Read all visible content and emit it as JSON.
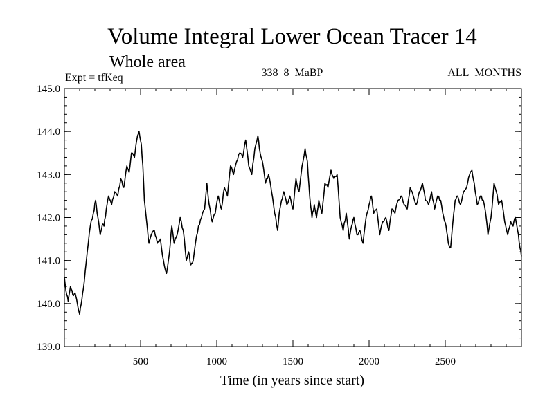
{
  "chart_data": {
    "type": "line",
    "title": "Volume Integral Lower Ocean Tracer 14",
    "subtitle": "Whole area",
    "annotations": {
      "left": "Expt = tfKeq",
      "center": "338_8_MaBP",
      "right": "ALL_MONTHS"
    },
    "xlabel": "Time (in years since start)",
    "ylabel": "",
    "xlim": [
      0,
      3000
    ],
    "ylim": [
      139.0,
      145.0
    ],
    "x_ticks": [
      500,
      1000,
      1500,
      2000,
      2500
    ],
    "x_tick_labels": [
      "500",
      "1000",
      "1500",
      "2000",
      "2500"
    ],
    "y_ticks": [
      139,
      140,
      141,
      142,
      143,
      144,
      145
    ],
    "y_tick_labels": [
      "139.0",
      "140.0",
      "141.0",
      "142.0",
      "143.0",
      "144.0",
      "145.0"
    ],
    "grid": false,
    "series": [
      {
        "color": "#000000",
        "x": [
          0,
          10,
          25,
          40,
          55,
          70,
          85,
          100,
          115,
          130,
          150,
          170,
          190,
          205,
          220,
          235,
          250,
          260,
          275,
          290,
          310,
          330,
          350,
          370,
          390,
          410,
          425,
          440,
          460,
          475,
          490,
          505,
          515,
          525,
          540,
          555,
          570,
          590,
          610,
          630,
          650,
          670,
          690,
          705,
          720,
          740,
          760,
          780,
          800,
          815,
          830,
          845,
          860,
          880,
          900,
          920,
          935,
          950,
          970,
          990,
          1010,
          1030,
          1050,
          1070,
          1090,
          1110,
          1130,
          1150,
          1170,
          1190,
          1210,
          1230,
          1250,
          1270,
          1285,
          1300,
          1320,
          1340,
          1360,
          1380,
          1400,
          1410,
          1425,
          1440,
          1460,
          1480,
          1500,
          1520,
          1540,
          1560,
          1580,
          1595,
          1610,
          1625,
          1640,
          1655,
          1670,
          1690,
          1710,
          1730,
          1750,
          1770,
          1790,
          1810,
          1830,
          1850,
          1870,
          1885,
          1900,
          1920,
          1940,
          1960,
          1980,
          2000,
          2015,
          2030,
          2050,
          2070,
          2090,
          2110,
          2130,
          2150,
          2170,
          2190,
          2210,
          2230,
          2250,
          2270,
          2290,
          2310,
          2330,
          2350,
          2370,
          2390,
          2410,
          2430,
          2450,
          2470,
          2490,
          2505,
          2520,
          2535,
          2550,
          2565,
          2580,
          2600,
          2620,
          2640,
          2660,
          2675,
          2690,
          2710,
          2730,
          2750,
          2765,
          2780,
          2800,
          2820,
          2835,
          2850,
          2870,
          2890,
          2910,
          2930,
          2945,
          2960,
          2975,
          2990,
          3000
        ],
        "values": [
          140.6,
          140.3,
          140.05,
          140.4,
          140.2,
          140.25,
          140.0,
          139.75,
          140.1,
          140.5,
          141.2,
          141.8,
          142.1,
          142.4,
          142.0,
          141.6,
          141.85,
          141.8,
          142.2,
          142.5,
          142.3,
          142.6,
          142.5,
          142.9,
          142.7,
          143.2,
          143.05,
          143.5,
          143.4,
          143.8,
          144.0,
          143.7,
          143.2,
          142.4,
          141.9,
          141.4,
          141.6,
          141.7,
          141.4,
          141.5,
          141.0,
          140.7,
          141.2,
          141.8,
          141.4,
          141.6,
          142.0,
          141.7,
          141.0,
          141.2,
          140.9,
          141.0,
          141.4,
          141.8,
          142.0,
          142.2,
          142.8,
          142.3,
          141.9,
          142.1,
          142.5,
          142.2,
          142.7,
          142.5,
          143.2,
          143.0,
          143.3,
          143.5,
          143.4,
          143.8,
          143.2,
          143.0,
          143.6,
          143.9,
          143.5,
          143.3,
          142.8,
          143.0,
          142.6,
          142.1,
          141.7,
          142.1,
          142.4,
          142.6,
          142.3,
          142.5,
          142.2,
          142.9,
          142.6,
          143.2,
          143.6,
          143.3,
          142.5,
          142.0,
          142.3,
          142.0,
          142.4,
          142.1,
          142.8,
          142.7,
          143.1,
          142.9,
          143.0,
          142.0,
          141.7,
          142.1,
          141.5,
          141.8,
          142.0,
          141.6,
          141.7,
          141.4,
          142.0,
          142.3,
          142.5,
          142.1,
          142.2,
          141.6,
          141.9,
          142.0,
          141.7,
          142.2,
          142.1,
          142.4,
          142.5,
          142.3,
          142.2,
          142.7,
          142.5,
          142.3,
          142.6,
          142.8,
          142.4,
          142.3,
          142.6,
          142.2,
          142.5,
          142.4,
          142.0,
          141.8,
          141.4,
          141.3,
          141.9,
          142.4,
          142.5,
          142.3,
          142.6,
          142.7,
          143.0,
          143.1,
          142.8,
          142.3,
          142.5,
          142.4,
          142.1,
          141.6,
          142.0,
          142.8,
          142.6,
          142.3,
          142.4,
          141.9,
          141.6,
          141.9,
          141.8,
          142.0,
          141.7,
          141.3,
          141.1
        ]
      }
    ]
  }
}
